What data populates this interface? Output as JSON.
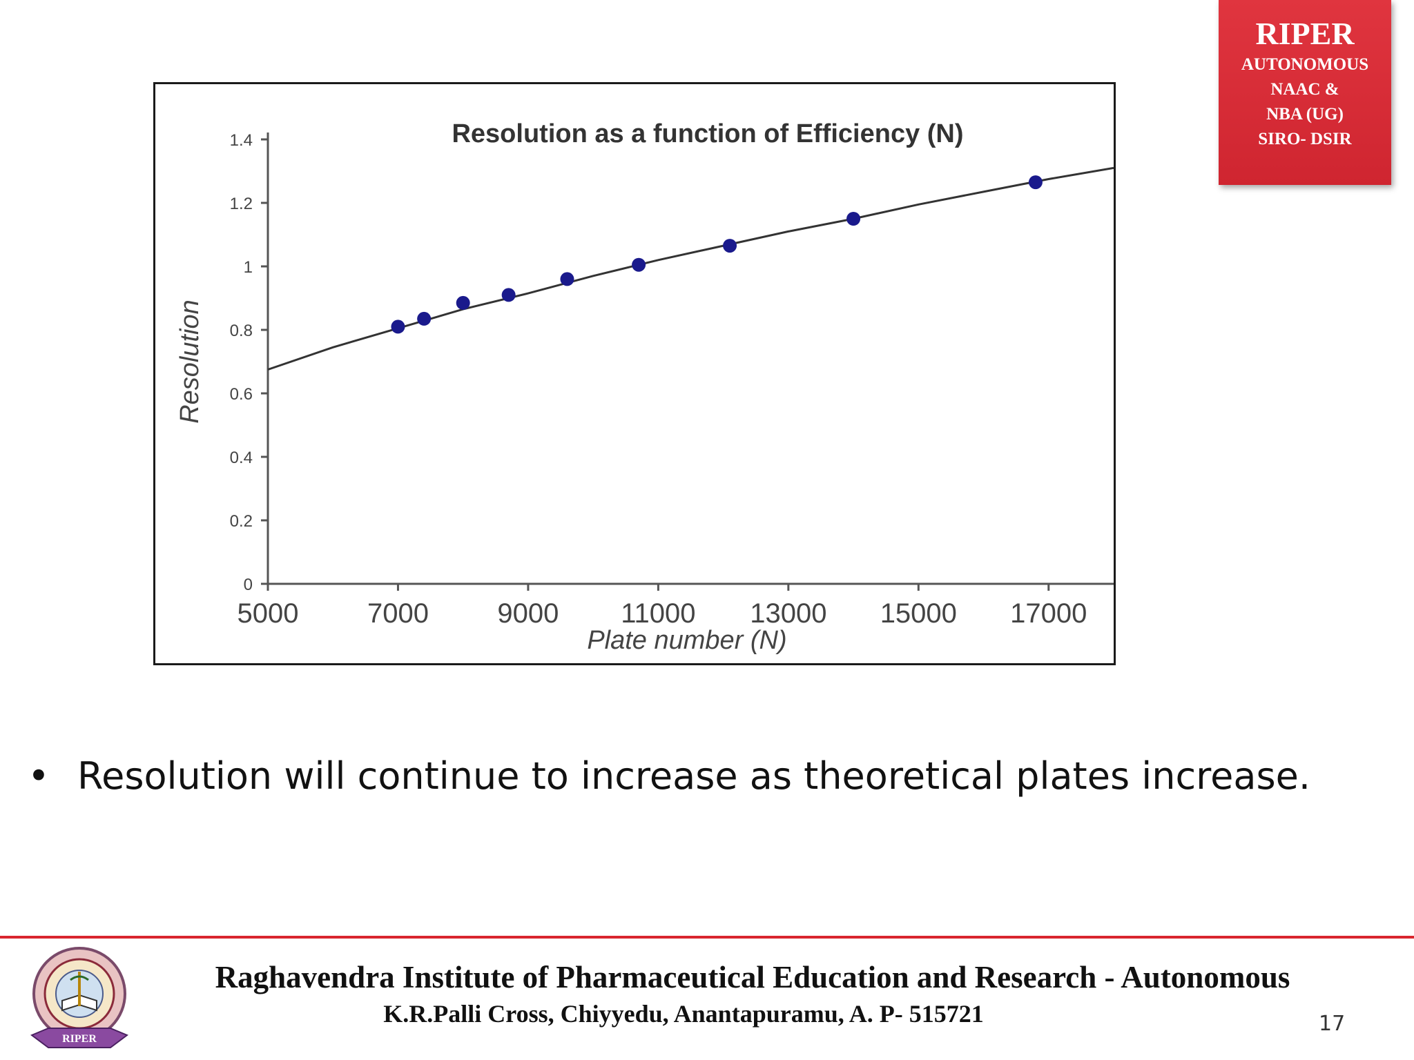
{
  "badge": {
    "title": "RIPER",
    "lines": [
      "AUTONOMOUS",
      "NAAC &",
      "NBA (UG)",
      "SIRO- DSIR"
    ],
    "color": "#d92b35"
  },
  "bullet": {
    "symbol": "•",
    "text": "Resolution will continue to increase as theoretical plates increase."
  },
  "footer": {
    "institute": "Raghavendra Institute of Pharmaceutical Education and Research - Autonomous",
    "address": "K.R.Palli Cross, Chiyyedu, Anantapuramu, A. P- 515721",
    "page_number": "17",
    "logo_banner_text": "RIPER",
    "rule_color": "#d9262e"
  },
  "chart_data": {
    "type": "scatter",
    "title": "Resolution as a function of Efficiency (N)",
    "xlabel": "Plate number (N)",
    "ylabel": "Resolution",
    "xlim": [
      5000,
      18000
    ],
    "ylim": [
      0,
      1.4
    ],
    "x_ticks": [
      5000,
      7000,
      9000,
      11000,
      13000,
      15000,
      17000
    ],
    "y_ticks": [
      "0",
      "0.2",
      "0.4",
      "0.6",
      "0.8",
      "1",
      "1.2",
      "1.4"
    ],
    "grid": false,
    "point_color": "#1a1a8c",
    "line_color": "#333333",
    "series": [
      {
        "name": "",
        "points": [
          {
            "x": 7000,
            "y": 0.81
          },
          {
            "x": 7400,
            "y": 0.835
          },
          {
            "x": 8000,
            "y": 0.885
          },
          {
            "x": 8700,
            "y": 0.91
          },
          {
            "x": 9600,
            "y": 0.96
          },
          {
            "x": 10700,
            "y": 1.005
          },
          {
            "x": 12100,
            "y": 1.065
          },
          {
            "x": 14000,
            "y": 1.15
          },
          {
            "x": 16800,
            "y": 1.265
          }
        ]
      }
    ],
    "fit_line": {
      "x": [
        5000,
        6000,
        7000,
        8000,
        9000,
        10000,
        11000,
        12000,
        13000,
        14000,
        15000,
        16000,
        17000,
        18000
      ],
      "y": [
        0.675,
        0.745,
        0.805,
        0.865,
        0.915,
        0.97,
        1.02,
        1.065,
        1.11,
        1.15,
        1.195,
        1.235,
        1.275,
        1.31
      ]
    }
  }
}
